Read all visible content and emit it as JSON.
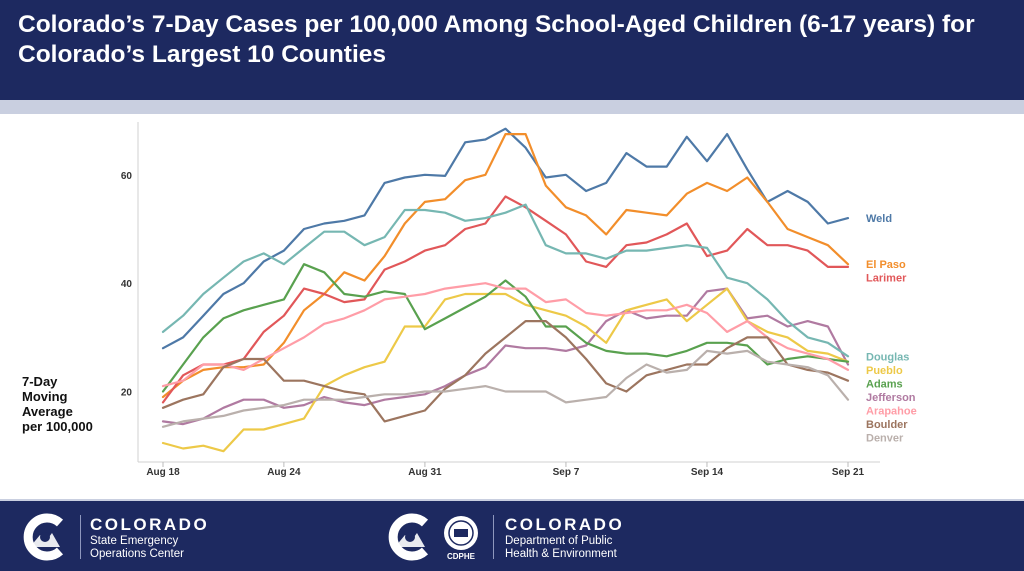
{
  "header": {
    "title": "Colorado’s 7-Day Cases per 100,000 Among School-Aged Children (6-17 years) for Colorado’s Largest 10 Counties"
  },
  "colors": {
    "header_bg": "#1d2960",
    "band": "#c9cfe0"
  },
  "footer": {
    "org1": {
      "name": "COLORADO",
      "line1": "State Emergency",
      "line2": "Operations Center"
    },
    "org2": {
      "name": "COLORADO",
      "line1": "Department of Public",
      "line2": "Health & Environment",
      "badge": "CDPHE"
    }
  },
  "chart_data": {
    "type": "line",
    "ylabel": "7-Day Moving Average per 100,000",
    "ylabel_lines": [
      "7-Day",
      "Moving",
      "Average",
      "per 100,000"
    ],
    "ylim": [
      7,
      69
    ],
    "yticks": [
      20,
      40,
      60
    ],
    "x_start": "Aug 18",
    "x_end": "Sep 21",
    "xtick_labels": [
      "Aug 18",
      "Aug 24",
      "Aug 31",
      "Sep 7",
      "Sep 14",
      "Sep 21"
    ],
    "xtick_index": [
      0,
      6,
      13,
      20,
      27,
      34
    ],
    "grid": false,
    "legend": "labels at line ends (right)",
    "series": [
      {
        "name": "Weld",
        "color": "#4e79a7",
        "values": [
          28,
          30,
          34,
          38,
          40,
          44,
          46,
          50,
          51,
          51.5,
          52.5,
          58.5,
          59.5,
          60,
          59.8,
          66,
          66.5,
          68.5,
          65,
          59.5,
          60,
          57,
          58.5,
          64,
          61.5,
          61.5,
          67,
          62.5,
          67.5,
          61,
          55,
          57,
          55,
          51,
          52
        ]
      },
      {
        "name": "El Paso",
        "color": "#f28e2b",
        "values": [
          19,
          22,
          24,
          24.5,
          24.5,
          25,
          29,
          35,
          38,
          42,
          40.5,
          45,
          51,
          55,
          55.5,
          59,
          60,
          67.5,
          67.5,
          58,
          54,
          52.5,
          49,
          53.5,
          53,
          52.5,
          56.5,
          58.5,
          57,
          59.5,
          55,
          50,
          48.5,
          47,
          43.5
        ]
      },
      {
        "name": "Larimer",
        "color": "#e15759",
        "values": [
          18,
          23,
          25,
          25,
          26,
          31,
          34,
          39,
          38,
          36.5,
          37,
          42.5,
          44,
          46,
          47,
          50,
          51,
          56,
          54,
          51.5,
          49,
          44,
          43,
          47,
          47.5,
          49,
          51,
          45,
          46,
          50,
          47,
          47,
          46,
          43,
          43
        ]
      },
      {
        "name": "Jefferson",
        "color": "#b07aa1",
        "values": [
          14.5,
          14,
          15,
          17,
          18.5,
          18.5,
          17,
          17.5,
          19,
          18,
          17.5,
          18.5,
          19,
          19.5,
          21,
          23,
          24.5,
          28.5,
          28,
          28,
          27.5,
          28.5,
          33,
          35,
          33.5,
          34,
          34,
          38.5,
          39,
          33.5,
          34,
          32,
          33,
          32,
          25
        ]
      },
      {
        "name": "Pueblo",
        "color": "#edc948",
        "values": [
          10.5,
          9.5,
          10,
          9,
          13,
          13,
          14,
          15,
          21,
          23,
          24.5,
          25.5,
          32,
          32,
          37,
          38,
          38,
          38,
          36,
          35,
          34,
          32,
          29,
          35,
          36,
          37,
          33,
          36,
          39,
          33,
          31,
          30,
          27.5,
          27,
          25.5
        ]
      },
      {
        "name": "Douglas",
        "color": "#76b7b2",
        "values": [
          31,
          34,
          38,
          41,
          44,
          45.5,
          43.5,
          46.5,
          49.5,
          49.5,
          47,
          48.5,
          53.5,
          53.5,
          53,
          51.5,
          52,
          53,
          54.5,
          47,
          45.5,
          45.5,
          44.5,
          46,
          46,
          46.5,
          47,
          46.5,
          41,
          40,
          37,
          33,
          30,
          29,
          26.5
        ]
      },
      {
        "name": "Adams",
        "color": "#59a14f",
        "values": [
          20,
          25,
          30,
          33.5,
          35,
          36,
          37,
          43.5,
          42,
          38,
          37.5,
          38.5,
          38,
          31.5,
          33.5,
          35.5,
          37.5,
          40.5,
          37.5,
          32,
          32,
          29,
          27.5,
          27,
          27,
          26.5,
          27.5,
          29,
          29,
          28.5,
          25,
          26,
          26.5,
          26,
          25.5
        ]
      },
      {
        "name": "Arapahoe",
        "color": "#ff9da7",
        "values": [
          21,
          22,
          25,
          25,
          24,
          26,
          28,
          30,
          32.5,
          33.5,
          35,
          37,
          37.5,
          38,
          39,
          39.5,
          40,
          39,
          39,
          36.5,
          37,
          34.5,
          34,
          34.5,
          35,
          35,
          36,
          34.5,
          31,
          33,
          30,
          28,
          27,
          26,
          24
        ]
      },
      {
        "name": "Boulder",
        "color": "#9c755f",
        "values": [
          17,
          18.5,
          19.5,
          24.5,
          26,
          26,
          22,
          22,
          21,
          20,
          19.5,
          14.5,
          15.5,
          16.5,
          20.5,
          23,
          27,
          30,
          33,
          33,
          30,
          26,
          21.5,
          20,
          23,
          24,
          25,
          25,
          28,
          30,
          30,
          25,
          24,
          23.5,
          22
        ]
      },
      {
        "name": "Denver",
        "color": "#bab0ac",
        "values": [
          13.5,
          14.5,
          15,
          15.5,
          16.5,
          17,
          17.5,
          18.5,
          18.5,
          18.5,
          19,
          19.5,
          19.5,
          20,
          20,
          20.5,
          21,
          20,
          20,
          20,
          18,
          18.5,
          19,
          22.5,
          25,
          23.5,
          24,
          27.5,
          27,
          27.5,
          25.5,
          25,
          24.5,
          23,
          18.5
        ]
      }
    ]
  }
}
